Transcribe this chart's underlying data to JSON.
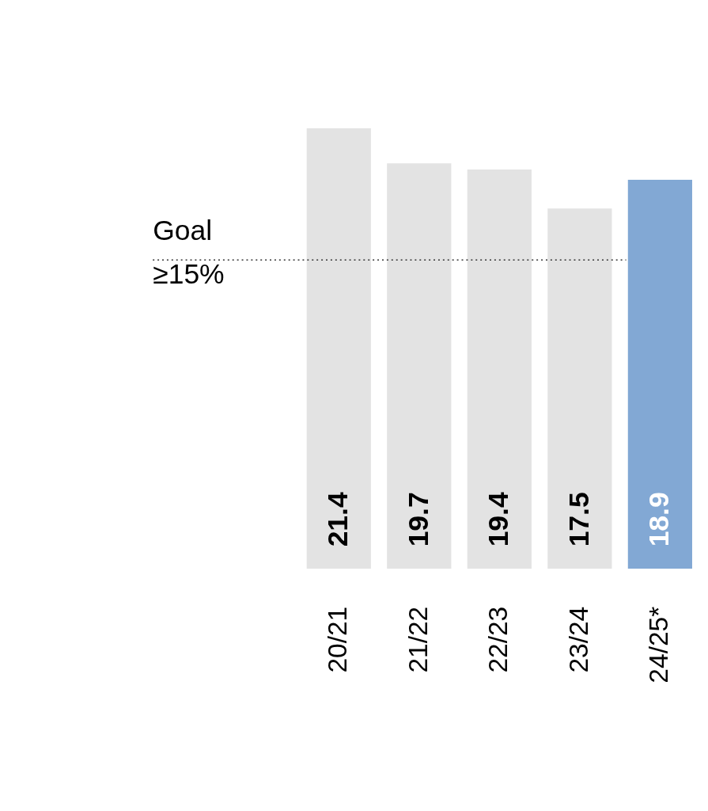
{
  "chart_data": {
    "type": "bar",
    "categories": [
      "20/21",
      "21/22",
      "22/23",
      "23/24",
      "24/25*"
    ],
    "values": [
      21.4,
      19.7,
      19.4,
      17.5,
      18.9
    ],
    "colors": [
      "#e3e3e3",
      "#e3e3e3",
      "#e3e3e3",
      "#e3e3e3",
      "#82a8d4"
    ],
    "data_labels": true,
    "ref_lines": [
      {
        "axis": "y",
        "value": 15,
        "label": "Goal\n≥15%",
        "color": "#333333",
        "line_style": "dotted"
      }
    ]
  }
}
